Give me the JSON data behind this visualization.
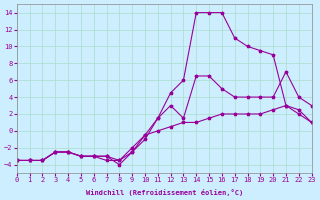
{
  "title": "",
  "xlabel": "Windchill (Refroidissement éolien,°C)",
  "ylabel": "",
  "bg_color": "#cceeff",
  "line_color": "#990099",
  "grid_color": "#aaddcc",
  "xlim": [
    0,
    23
  ],
  "ylim": [
    -5,
    15
  ],
  "xticks": [
    0,
    1,
    2,
    3,
    4,
    5,
    6,
    7,
    8,
    9,
    10,
    11,
    12,
    13,
    14,
    15,
    16,
    17,
    18,
    19,
    20,
    21,
    22,
    23
  ],
  "yticks": [
    -4,
    -2,
    0,
    2,
    4,
    6,
    8,
    10,
    12,
    14
  ],
  "line1_x": [
    0,
    1,
    2,
    3,
    4,
    5,
    6,
    7,
    8,
    9,
    10,
    11,
    12,
    13,
    14,
    15,
    16,
    17,
    18,
    19,
    20,
    21,
    22,
    23
  ],
  "line1_y": [
    -3.5,
    -3.5,
    -3.5,
    -2.5,
    -2.5,
    -3,
    -3,
    -3.5,
    -3.5,
    -2.5,
    -1,
    1.5,
    4.5,
    6,
    14,
    14,
    14,
    11,
    10,
    9.5,
    9,
    3,
    2.5,
    1
  ],
  "line2_x": [
    0,
    1,
    2,
    3,
    4,
    5,
    6,
    7,
    8,
    9,
    10,
    11,
    12,
    13,
    14,
    15,
    16,
    17,
    18,
    19,
    20,
    21,
    22,
    23
  ],
  "line2_y": [
    -3.5,
    -3.5,
    -3.5,
    -2.5,
    -2.5,
    -3,
    -3,
    -3,
    -4,
    -2.5,
    -0.5,
    1.5,
    3,
    1.5,
    6.5,
    6.5,
    5,
    4,
    4,
    4,
    4,
    7,
    4,
    3
  ],
  "line3_x": [
    0,
    1,
    2,
    3,
    4,
    5,
    6,
    7,
    8,
    9,
    10,
    11,
    12,
    13,
    14,
    15,
    16,
    17,
    18,
    19,
    20,
    21,
    22,
    23
  ],
  "line3_y": [
    -3.5,
    -3.5,
    -3.5,
    -2.5,
    -2.5,
    -3,
    -3,
    -3,
    -3.5,
    -2,
    -0.5,
    0,
    0.5,
    1,
    1,
    1.5,
    2,
    2,
    2,
    2,
    2.5,
    3,
    2,
    1
  ]
}
